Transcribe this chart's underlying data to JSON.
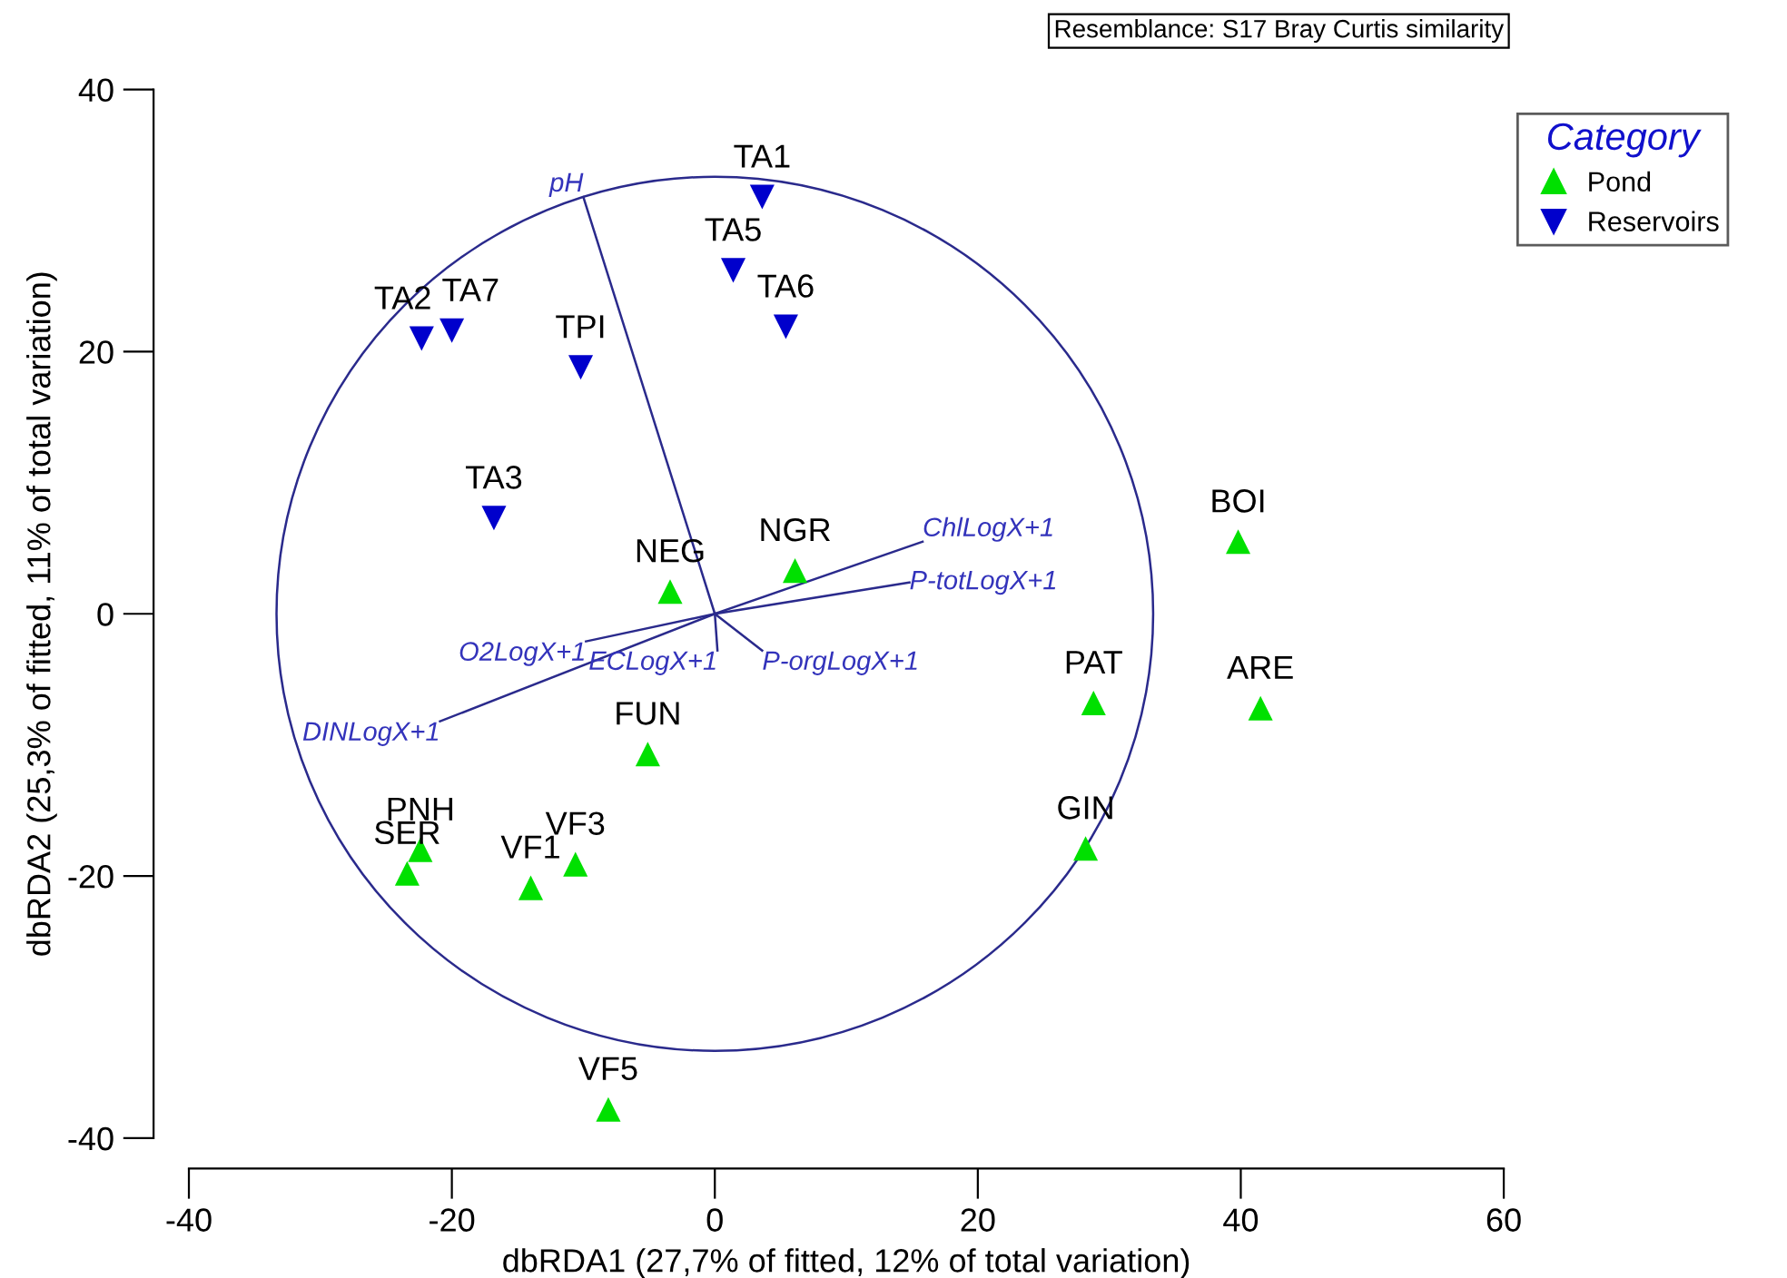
{
  "chart_data": {
    "type": "scatter",
    "xlabel": "dbRDA1 (27,7% of fitted, 12% of total variation)",
    "ylabel": "dbRDA2 (25,3% of fitted, 11% of total variation)",
    "legend_title": "Category",
    "legend": "top right",
    "grid": false,
    "xlim": [
      -40,
      60
    ],
    "xticks": [
      -40,
      -20,
      0,
      20,
      40,
      60
    ],
    "ylim": [
      -40,
      40
    ],
    "yticks": [
      -40,
      -20,
      0,
      20,
      40
    ],
    "series": [
      {
        "name": "Pond",
        "color": "#00e000",
        "marker": "triangle",
        "x": [
          -3.4,
          6.1,
          -5.1,
          -22.4,
          -23.4,
          -14.0,
          -10.6,
          -8.1,
          28.2,
          28.8,
          41.5,
          39.8
        ],
        "values": [
          1.7,
          3.3,
          -10.7,
          -18.0,
          -19.8,
          -20.9,
          -19.1,
          -37.8,
          -17.9,
          -6.8,
          -7.2,
          5.5
        ]
      },
      {
        "name": "Reservoirs",
        "color": "#0000cc",
        "marker": "triangle_down",
        "x": [
          3.6,
          1.4,
          5.4,
          -22.3,
          -20.0,
          -10.2,
          -16.8
        ],
        "values": [
          31.8,
          26.2,
          21.9,
          21.0,
          21.6,
          18.8,
          7.3
        ]
      },
      {
        "type": "line",
        "name": "pH",
        "color": "#2a2a8c",
        "x": [
          0,
          -10.0
        ],
        "values": [
          0,
          31.8
        ]
      },
      {
        "type": "line",
        "name": "ChlLogX+1",
        "color": "#2a2a8c",
        "x": [
          0,
          15.8
        ],
        "values": [
          0,
          5.5
        ]
      },
      {
        "type": "line",
        "name": "P-totLogX+1",
        "color": "#2a2a8c",
        "x": [
          0,
          14.8
        ],
        "values": [
          0,
          2.4
        ]
      },
      {
        "type": "line",
        "name": "O2LogX+1",
        "color": "#2a2a8c",
        "x": [
          0,
          -9.8
        ],
        "values": [
          0,
          -2.1
        ]
      },
      {
        "type": "line",
        "name": "DINLogX+1",
        "color": "#2a2a8c",
        "x": [
          0,
          -20.9
        ],
        "values": [
          0,
          -8.2
        ]
      },
      {
        "type": "line",
        "name": "ECLogX+1",
        "color": "#2a2a8c",
        "x": [
          0,
          0.2
        ],
        "values": [
          0,
          -2.8
        ]
      },
      {
        "type": "line",
        "name": "P-orgLogX+1",
        "color": "#2a2a8c",
        "x": [
          0,
          3.6
        ],
        "values": [
          0,
          -2.8
        ]
      }
    ],
    "annotations": [
      "Resemblance: S17 Bray Curtis similarity",
      {
        "text": "NEG",
        "x": -3.4,
        "y": 1.7
      },
      {
        "text": "NGR",
        "x": 6.1,
        "y": 3.3
      },
      {
        "text": "FUN",
        "x": -5.1,
        "y": -10.7
      },
      {
        "text": "PNH",
        "x": -22.4,
        "y": -18.0
      },
      {
        "text": "SER",
        "x": -23.4,
        "y": -19.8
      },
      {
        "text": "VF1",
        "x": -14.0,
        "y": -20.9
      },
      {
        "text": "VF3",
        "x": -10.6,
        "y": -19.1
      },
      {
        "text": "VF5",
        "x": -8.1,
        "y": -37.8
      },
      {
        "text": "GIN",
        "x": 28.2,
        "y": -17.9
      },
      {
        "text": "PAT",
        "x": 28.8,
        "y": -6.8
      },
      {
        "text": "ARE",
        "x": 41.5,
        "y": -7.2
      },
      {
        "text": "BOI",
        "x": 39.8,
        "y": 5.5
      },
      {
        "text": "TA1",
        "x": 3.6,
        "y": 31.8
      },
      {
        "text": "TA5",
        "x": 1.4,
        "y": 26.2
      },
      {
        "text": "TA6",
        "x": 5.4,
        "y": 21.9
      },
      {
        "text": "TA2",
        "x": -22.3,
        "y": 21.0
      },
      {
        "text": "TA7",
        "x": -20.0,
        "y": 21.6
      },
      {
        "text": "TPI",
        "x": -10.2,
        "y": 18.8
      },
      {
        "text": "TA3",
        "x": -16.8,
        "y": 7.3
      }
    ]
  }
}
